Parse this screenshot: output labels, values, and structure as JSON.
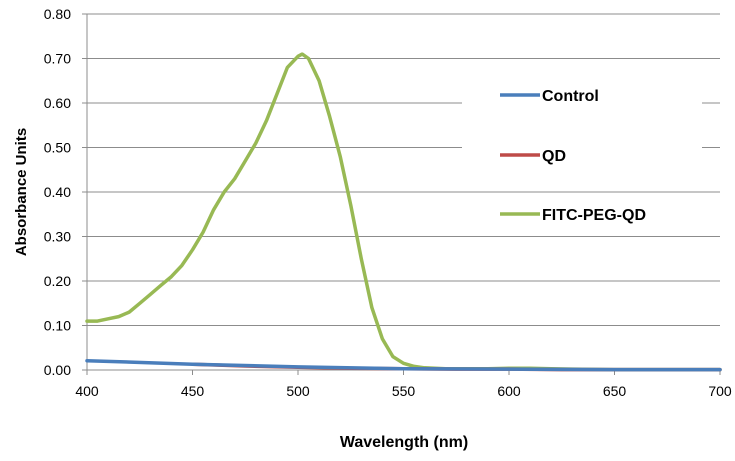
{
  "chart_data": {
    "type": "line",
    "title": "",
    "xlabel": "Wavelength (nm)",
    "ylabel": "Absorbance Units",
    "xlim": [
      400,
      700
    ],
    "ylim": [
      0,
      0.8
    ],
    "x_ticks": [
      "400",
      "450",
      "500",
      "550",
      "600",
      "650",
      "700"
    ],
    "y_ticks": [
      "0.00",
      "0.10",
      "0.20",
      "0.30",
      "0.40",
      "0.50",
      "0.60",
      "0.70",
      "0.80"
    ],
    "grid": "horizontal",
    "legend_position": "right",
    "series": [
      {
        "name": "Control",
        "color": "#4a7ebb",
        "x": [
          400,
          450,
          500,
          550,
          600,
          650,
          700
        ],
        "y": [
          0.021,
          0.013,
          0.007,
          0.003,
          0.002,
          0.001,
          0.001
        ]
      },
      {
        "name": "QD",
        "color": "#be4b48",
        "x": [
          450,
          475,
          500,
          525,
          550,
          575,
          600,
          625,
          650,
          700
        ],
        "y": [
          0.013,
          0.009,
          0.006,
          0.004,
          0.003,
          0.002,
          0.002,
          0.001,
          0.001,
          0.001
        ]
      },
      {
        "name": "FITC-PEG-QD",
        "color": "#98b954",
        "x": [
          400,
          405,
          410,
          415,
          420,
          425,
          430,
          435,
          440,
          445,
          450,
          455,
          460,
          465,
          470,
          475,
          480,
          485,
          490,
          495,
          500,
          502,
          505,
          510,
          515,
          520,
          525,
          530,
          535,
          540,
          545,
          550,
          555,
          560,
          570,
          580,
          590,
          600,
          610,
          620,
          630,
          650,
          700
        ],
        "y": [
          0.11,
          0.11,
          0.115,
          0.12,
          0.13,
          0.15,
          0.17,
          0.19,
          0.21,
          0.235,
          0.27,
          0.31,
          0.36,
          0.4,
          0.43,
          0.47,
          0.51,
          0.56,
          0.62,
          0.68,
          0.705,
          0.71,
          0.7,
          0.65,
          0.57,
          0.48,
          0.37,
          0.25,
          0.14,
          0.07,
          0.03,
          0.015,
          0.008,
          0.005,
          0.003,
          0.003,
          0.003,
          0.004,
          0.004,
          0.003,
          0.002,
          0.001,
          0.001
        ]
      }
    ]
  }
}
